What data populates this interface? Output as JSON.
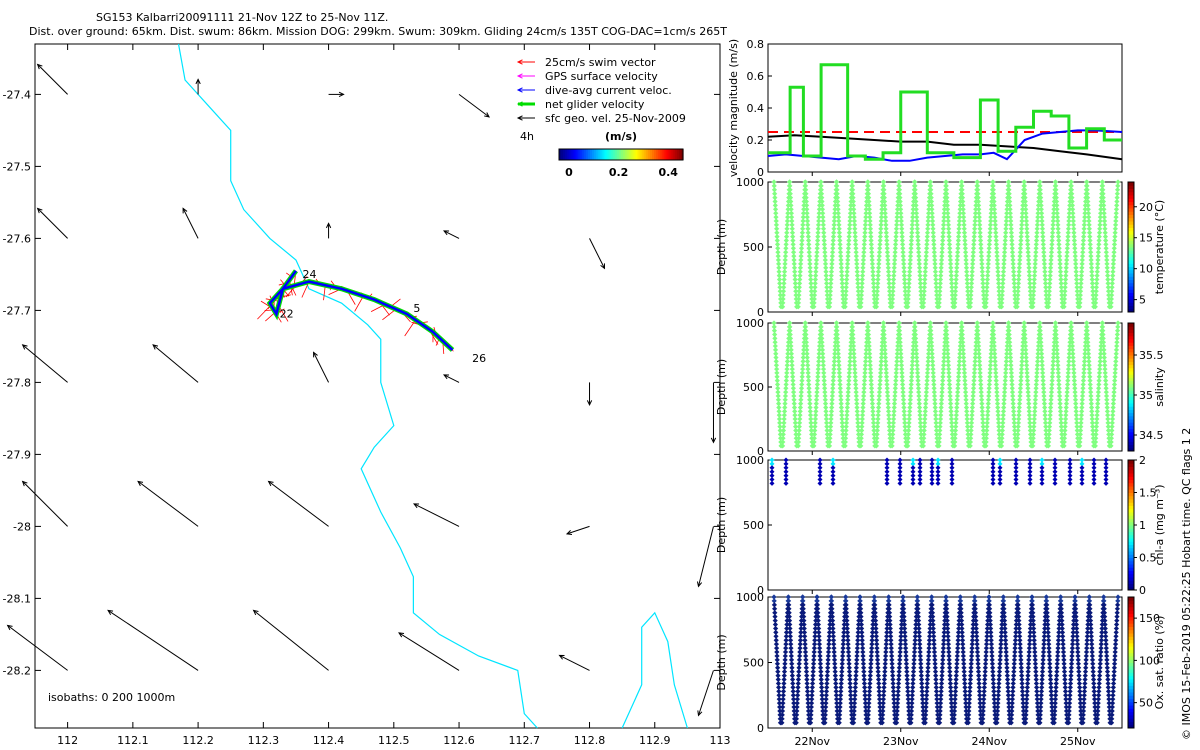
{
  "header": {
    "title_line1": "SG153 Kalbarri20091111 21-Nov 12Z to 25-Nov 11Z.",
    "title_line2": "Dist. over ground: 65km. Dist. swum: 86km. Mission DOG: 299km. Swum: 309km. Gliding 24cm/s 135T COG-DAC=1cm/s 265T"
  },
  "copyright": "© IMOS 15-Feb-2019 05:22:25 Hobart time. QC flags 1  2",
  "chart_data": [
    {
      "type": "map",
      "name": "glider-track-map",
      "xlim": [
        111.95,
        113.0
      ],
      "ylim": [
        -28.28,
        -27.33
      ],
      "xticks": [
        "112",
        "112.1",
        "112.2",
        "112.3",
        "112.4",
        "112.5",
        "112.6",
        "112.7",
        "112.8",
        "112.9",
        "113"
      ],
      "xtick_values": [
        112,
        112.1,
        112.2,
        112.3,
        112.4,
        112.5,
        112.6,
        112.7,
        112.8,
        112.9,
        113
      ],
      "yticks": [
        "-27.4",
        "-27.5",
        "-27.6",
        "-27.7",
        "-27.8",
        "-27.9",
        "-28",
        "-28.1",
        "-28.2"
      ],
      "ytick_values": [
        -27.4,
        -27.5,
        -27.6,
        -27.7,
        -27.8,
        -27.9,
        -28.0,
        -28.1,
        -28.2
      ],
      "legend": [
        {
          "label": "25cm/s swim vector",
          "color": "#ff0000"
        },
        {
          "label": "GPS surface velocity",
          "color": "#ff00ff"
        },
        {
          "label": "dive-avg current veloc.",
          "color": "#0000ff"
        },
        {
          "label": "net glider velocity",
          "color": "#00dd00"
        },
        {
          "label": "sfc geo. vel. 25-Nov-2009",
          "color": "#000000"
        }
      ],
      "legend_placement": "top-right",
      "time_label": "4h",
      "colorbar": {
        "label": "(m/s)",
        "ticks": [
          "0",
          "0.2",
          "0.4"
        ],
        "range": [
          0,
          0.5
        ]
      },
      "isobaths_label": "isobaths: 0   200  1000m",
      "track_labels": [
        {
          "text": "24",
          "lon": 112.36,
          "lat": -27.655
        },
        {
          "text": "22",
          "lon": 112.325,
          "lat": -27.71
        },
        {
          "text": "5",
          "lon": 112.53,
          "lat": -27.702
        },
        {
          "text": "26",
          "lon": 112.62,
          "lat": -27.772
        }
      ],
      "track": [
        [
          112.35,
          -27.645
        ],
        [
          112.33,
          -27.67
        ],
        [
          112.31,
          -27.69
        ],
        [
          112.32,
          -27.705
        ],
        [
          112.33,
          -27.67
        ],
        [
          112.37,
          -27.66
        ],
        [
          112.42,
          -27.67
        ],
        [
          112.47,
          -27.685
        ],
        [
          112.52,
          -27.705
        ],
        [
          112.56,
          -27.73
        ],
        [
          112.59,
          -27.755
        ]
      ],
      "isobath_1000": [
        [
          112.17,
          -27.33
        ],
        [
          112.18,
          -27.38
        ],
        [
          112.22,
          -27.42
        ],
        [
          112.25,
          -27.45
        ],
        [
          112.25,
          -27.52
        ],
        [
          112.27,
          -27.56
        ],
        [
          112.31,
          -27.6
        ],
        [
          112.35,
          -27.63
        ],
        [
          112.37,
          -27.67
        ],
        [
          112.42,
          -27.69
        ],
        [
          112.46,
          -27.72
        ],
        [
          112.48,
          -27.74
        ],
        [
          112.48,
          -27.8
        ],
        [
          112.5,
          -27.86
        ],
        [
          112.47,
          -27.89
        ],
        [
          112.45,
          -27.92
        ],
        [
          112.48,
          -27.98
        ],
        [
          112.51,
          -28.03
        ],
        [
          112.53,
          -28.07
        ],
        [
          112.53,
          -28.12
        ],
        [
          112.57,
          -28.15
        ],
        [
          112.63,
          -28.18
        ],
        [
          112.69,
          -28.2
        ],
        [
          112.7,
          -28.26
        ],
        [
          112.72,
          -28.28
        ]
      ],
      "isobath_1000b": [
        [
          112.85,
          -28.28
        ],
        [
          112.88,
          -28.22
        ],
        [
          112.88,
          -28.14
        ],
        [
          112.9,
          -28.12
        ],
        [
          112.92,
          -28.16
        ],
        [
          112.93,
          -28.22
        ],
        [
          112.95,
          -28.28
        ]
      ],
      "sfc_vectors": [
        [
          112.0,
          -27.4,
          -0.02,
          0.02
        ],
        [
          112.2,
          -27.4,
          0,
          0.01
        ],
        [
          112.4,
          -27.4,
          0.01,
          0
        ],
        [
          112.6,
          -27.4,
          0.02,
          -0.015
        ],
        [
          112.0,
          -27.6,
          -0.02,
          0.02
        ],
        [
          112.2,
          -27.6,
          -0.01,
          0.02
        ],
        [
          112.4,
          -27.6,
          0,
          0.01
        ],
        [
          112.6,
          -27.6,
          -0.01,
          0.005
        ],
        [
          112.8,
          -27.6,
          0.01,
          -0.02
        ],
        [
          112.0,
          -27.8,
          -0.03,
          0.025
        ],
        [
          112.2,
          -27.8,
          -0.03,
          0.025
        ],
        [
          112.4,
          -27.8,
          -0.01,
          0.02
        ],
        [
          112.6,
          -27.8,
          -0.01,
          0.005
        ],
        [
          112.8,
          -27.8,
          0,
          -0.015
        ],
        [
          112.99,
          -27.8,
          0,
          -0.04
        ],
        [
          112.0,
          -28.0,
          -0.03,
          0.03
        ],
        [
          112.2,
          -28.0,
          -0.04,
          0.03
        ],
        [
          112.4,
          -28.0,
          -0.04,
          0.03
        ],
        [
          112.6,
          -28.0,
          -0.03,
          0.015
        ],
        [
          112.8,
          -28.0,
          -0.015,
          -0.005
        ],
        [
          112.99,
          -28.0,
          -0.01,
          -0.04
        ],
        [
          112.0,
          -28.2,
          -0.04,
          0.03
        ],
        [
          112.2,
          -28.2,
          -0.06,
          0.04
        ],
        [
          112.4,
          -28.2,
          -0.05,
          0.04
        ],
        [
          112.6,
          -28.2,
          -0.04,
          0.025
        ],
        [
          112.8,
          -28.2,
          -0.02,
          0.01
        ],
        [
          112.99,
          -28.2,
          -0.01,
          -0.03
        ]
      ]
    },
    {
      "type": "line",
      "name": "velocity-magnitude",
      "ylabel": "velocity magnitude (m/s)",
      "ylim": [
        0,
        0.8
      ],
      "yticks": [
        "0",
        "0.2",
        "0.4",
        "0.6",
        "0.8"
      ],
      "xlim": [
        21.5,
        25.5
      ],
      "series": [
        {
          "color": "#ff0000",
          "style": "dashed",
          "x": [
            21.5,
            25.5
          ],
          "y": [
            0.25,
            0.25
          ]
        },
        {
          "color": "#000000",
          "x": [
            21.5,
            21.8,
            22.1,
            22.4,
            22.7,
            23.0,
            23.3,
            23.6,
            23.9,
            24.2,
            24.5,
            24.8,
            25.1,
            25.5
          ],
          "y": [
            0.22,
            0.23,
            0.22,
            0.21,
            0.2,
            0.19,
            0.19,
            0.17,
            0.17,
            0.16,
            0.15,
            0.13,
            0.11,
            0.08
          ]
        },
        {
          "color": "#0000ff",
          "x": [
            21.5,
            21.7,
            21.9,
            22.1,
            22.3,
            22.5,
            22.7,
            22.9,
            23.1,
            23.3,
            23.5,
            23.7,
            23.9,
            24.05,
            24.2,
            24.4,
            24.6,
            24.8,
            25.0,
            25.2,
            25.5
          ],
          "y": [
            0.1,
            0.11,
            0.1,
            0.09,
            0.08,
            0.1,
            0.09,
            0.07,
            0.07,
            0.09,
            0.1,
            0.11,
            0.11,
            0.12,
            0.08,
            0.2,
            0.24,
            0.25,
            0.26,
            0.26,
            0.25
          ]
        },
        {
          "color": "#22dd22",
          "x": [
            21.5,
            21.75,
            21.75,
            21.9,
            21.9,
            22.1,
            22.1,
            22.4,
            22.4,
            22.6,
            22.6,
            22.8,
            22.8,
            23.0,
            23.0,
            23.3,
            23.3,
            23.6,
            23.6,
            23.9,
            23.9,
            24.1,
            24.1,
            24.3,
            24.3,
            24.5,
            24.5,
            24.7,
            24.7,
            24.9,
            24.9,
            25.1,
            25.1,
            25.3,
            25.3,
            25.5
          ],
          "y": [
            0.12,
            0.12,
            0.53,
            0.53,
            0.1,
            0.1,
            0.67,
            0.67,
            0.1,
            0.1,
            0.08,
            0.08,
            0.12,
            0.12,
            0.5,
            0.5,
            0.12,
            0.12,
            0.09,
            0.09,
            0.45,
            0.45,
            0.13,
            0.13,
            0.28,
            0.28,
            0.38,
            0.38,
            0.35,
            0.35,
            0.15,
            0.15,
            0.27,
            0.27,
            0.2,
            0.2
          ]
        }
      ]
    },
    {
      "type": "scatter",
      "name": "temperature-section",
      "ylabel": "Depth (m)",
      "yticks": [
        "0",
        "500",
        "1000"
      ],
      "ylim": [
        0,
        1000
      ],
      "colorbar": {
        "label": "temperature (°C)",
        "ticks": [
          "5",
          "10",
          "15",
          "20"
        ],
        "range": [
          3,
          24
        ]
      },
      "colormap": "jet",
      "dives": 22,
      "max_depth": 960,
      "coverage": "full"
    },
    {
      "type": "scatter",
      "name": "salinity-section",
      "ylabel": "Depth (m)",
      "yticks": [
        "0",
        "500",
        "1000"
      ],
      "ylim": [
        0,
        1000
      ],
      "colorbar": {
        "label": "salinity",
        "ticks": [
          "34.5",
          "35",
          "35.5"
        ],
        "range": [
          34.3,
          35.9
        ]
      },
      "colormap": "jet",
      "dives": 22,
      "max_depth": 960,
      "coverage": "full"
    },
    {
      "type": "scatter",
      "name": "chla-section",
      "ylabel": "Depth (m)",
      "yticks": [
        "0",
        "500",
        "1000"
      ],
      "ylim": [
        0,
        1000
      ],
      "colorbar": {
        "label": "chl-a (mg m⁻³)",
        "ticks": [
          "0",
          "0.5",
          "1",
          "1.5",
          "2"
        ],
        "range": [
          0,
          2
        ]
      },
      "colormap": "jet",
      "max_depth": 200,
      "coverage": "shallow"
    },
    {
      "type": "scatter",
      "name": "oxygen-section",
      "ylabel": "Depth (m)",
      "yticks": [
        "0",
        "500",
        "1000"
      ],
      "ylim": [
        0,
        1000
      ],
      "xticks": [
        "22Nov",
        "23Nov",
        "24Nov",
        "25Nov"
      ],
      "xtick_values": [
        22,
        23,
        24,
        25
      ],
      "xlim": [
        21.5,
        25.5
      ],
      "colorbar": {
        "label": "Ox. sat. ratio (%)",
        "ticks": [
          "50",
          "100",
          "150"
        ],
        "range": [
          20,
          175
        ]
      },
      "colormap": "jet",
      "dives": 24,
      "max_depth": 960,
      "coverage": "full-dark"
    }
  ]
}
